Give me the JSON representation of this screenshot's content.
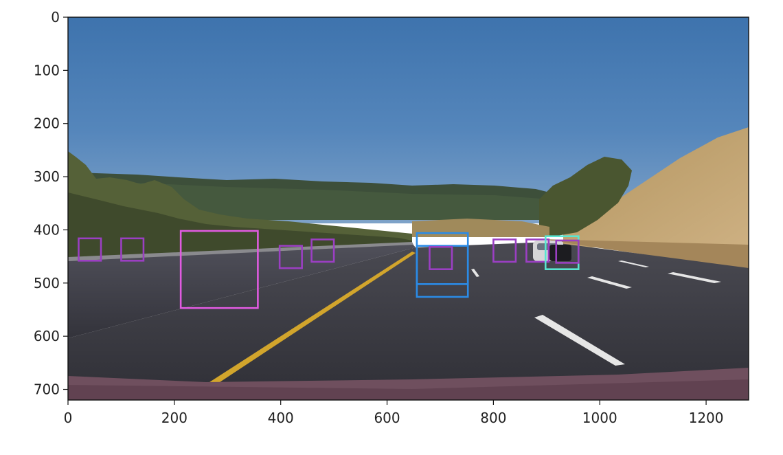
{
  "x_axis": {
    "range": [
      0,
      1280
    ],
    "ticks": [
      {
        "value": 0,
        "label": "0"
      },
      {
        "value": 200,
        "label": "200"
      },
      {
        "value": 400,
        "label": "400"
      },
      {
        "value": 600,
        "label": "600"
      },
      {
        "value": 800,
        "label": "800"
      },
      {
        "value": 1000,
        "label": "1000"
      },
      {
        "value": 1200,
        "label": "1200"
      }
    ]
  },
  "y_axis": {
    "range": [
      0,
      720
    ],
    "ticks": [
      {
        "value": 0,
        "label": "0"
      },
      {
        "value": 100,
        "label": "100"
      },
      {
        "value": 200,
        "label": "200"
      },
      {
        "value": 300,
        "label": "300"
      },
      {
        "value": 400,
        "label": "400"
      },
      {
        "value": 500,
        "label": "500"
      },
      {
        "value": 600,
        "label": "600"
      },
      {
        "value": 700,
        "label": "700"
      }
    ]
  },
  "detection_boxes": [
    {
      "x1": 20,
      "y1": 416,
      "x2": 62,
      "y2": 458,
      "color": "#9b3fc3"
    },
    {
      "x1": 100,
      "y1": 416,
      "x2": 142,
      "y2": 458,
      "color": "#9b3fc3"
    },
    {
      "x1": 212,
      "y1": 402,
      "x2": 357,
      "y2": 547,
      "color": "#e05be0"
    },
    {
      "x1": 398,
      "y1": 430,
      "x2": 440,
      "y2": 472,
      "color": "#9b3fc3"
    },
    {
      "x1": 458,
      "y1": 418,
      "x2": 500,
      "y2": 460,
      "color": "#9b3fc3"
    },
    {
      "x1": 656,
      "y1": 406,
      "x2": 752,
      "y2": 502,
      "color": "#2b8be6"
    },
    {
      "x1": 656,
      "y1": 430,
      "x2": 752,
      "y2": 526,
      "color": "#2b8be6"
    },
    {
      "x1": 680,
      "y1": 432,
      "x2": 722,
      "y2": 474,
      "color": "#9b3fc3"
    },
    {
      "x1": 800,
      "y1": 418,
      "x2": 842,
      "y2": 460,
      "color": "#9b3fc3"
    },
    {
      "x1": 862,
      "y1": 418,
      "x2": 904,
      "y2": 460,
      "color": "#9b3fc3"
    },
    {
      "x1": 898,
      "y1": 412,
      "x2": 960,
      "y2": 474,
      "color": "#58e6d2"
    },
    {
      "x1": 918,
      "y1": 420,
      "x2": 960,
      "y2": 462,
      "color": "#9b3fc3"
    }
  ]
}
